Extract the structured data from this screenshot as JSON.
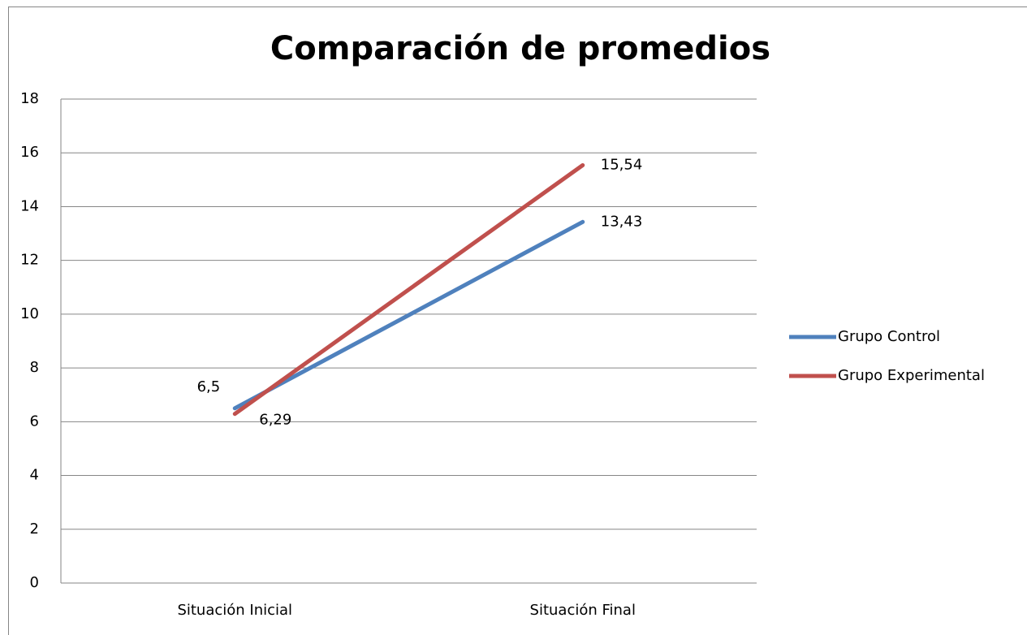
{
  "chart_data": {
    "type": "line",
    "title": "Comparación de promedios",
    "categories": [
      "Situación Inicial",
      "Situación Final"
    ],
    "series": [
      {
        "name": "Grupo Control",
        "color": "#4f81bd",
        "values": [
          6.5,
          13.43
        ],
        "value_labels": [
          "6,5",
          "13,43"
        ]
      },
      {
        "name": "Grupo Experimental",
        "color": "#c0504d",
        "values": [
          6.29,
          15.54
        ],
        "value_labels": [
          "6,29",
          "15,54"
        ]
      }
    ],
    "ylim": [
      0,
      18
    ],
    "yticks": [
      0,
      2,
      4,
      6,
      8,
      10,
      12,
      14,
      16,
      18
    ],
    "grid": true,
    "legend": "right"
  }
}
